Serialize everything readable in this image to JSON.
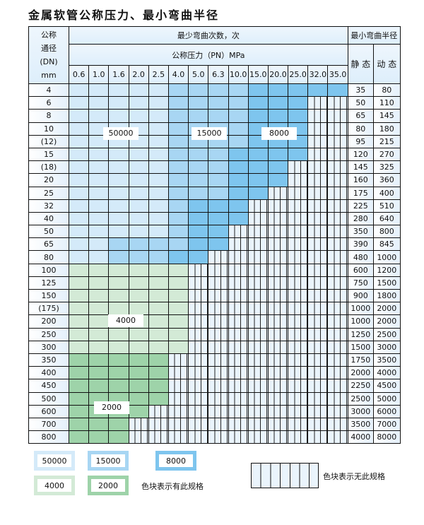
{
  "title": "金属软管公称压力、最小弯曲半径",
  "header": {
    "dn_label": [
      "公称",
      "通径",
      "(DN)",
      "mm"
    ],
    "bend_count_label": "最少弯曲次数，次",
    "pressure_label": "公称压力（PN）MPa",
    "radius_label": "最小弯曲半径",
    "static_label": "静 态",
    "dynamic_label": "动 态",
    "pressures": [
      "0.6",
      "1.0",
      "1.6",
      "2.0",
      "2.5",
      "4.0",
      "5.0",
      "6.3",
      "10.0",
      "15.0",
      "20.0",
      "25.0",
      "32.0",
      "35.0"
    ]
  },
  "tier_colors": {
    "50000": "#d4eaf9",
    "15000": "#a8d6f3",
    "8000": "#7ec5ee",
    "4000": "#d3ead6",
    "2000": "#9ed3a9"
  },
  "rows": [
    {
      "dn": "4",
      "static": "35",
      "dynamic": "80",
      "tiers": [
        [
          "50000",
          5
        ],
        [
          "15000",
          4
        ],
        [
          "8000",
          5
        ]
      ]
    },
    {
      "dn": "6",
      "static": "50",
      "dynamic": "110",
      "tiers": [
        [
          "50000",
          5
        ],
        [
          "15000",
          4
        ],
        [
          "8000",
          3
        ]
      ]
    },
    {
      "dn": "8",
      "static": "65",
      "dynamic": "145",
      "tiers": [
        [
          "50000",
          5
        ],
        [
          "15000",
          4
        ],
        [
          "8000",
          3
        ]
      ]
    },
    {
      "dn": "10",
      "static": "80",
      "dynamic": "180",
      "tiers": [
        [
          "50000",
          5
        ],
        [
          "15000",
          4
        ],
        [
          "8000",
          3
        ]
      ]
    },
    {
      "dn": "(12)",
      "static": "95",
      "dynamic": "215",
      "tiers": [
        [
          "50000",
          5
        ],
        [
          "15000",
          4
        ],
        [
          "8000",
          3
        ]
      ]
    },
    {
      "dn": "15",
      "static": "120",
      "dynamic": "270",
      "tiers": [
        [
          "50000",
          5
        ],
        [
          "15000",
          3
        ],
        [
          "8000",
          4
        ]
      ]
    },
    {
      "dn": "(18)",
      "static": "145",
      "dynamic": "325",
      "tiers": [
        [
          "50000",
          5
        ],
        [
          "15000",
          3
        ],
        [
          "8000",
          3
        ]
      ]
    },
    {
      "dn": "20",
      "static": "160",
      "dynamic": "360",
      "tiers": [
        [
          "50000",
          5
        ],
        [
          "15000",
          3
        ],
        [
          "8000",
          3
        ]
      ]
    },
    {
      "dn": "25",
      "static": "175",
      "dynamic": "400",
      "tiers": [
        [
          "50000",
          5
        ],
        [
          "15000",
          3
        ],
        [
          "8000",
          2
        ]
      ]
    },
    {
      "dn": "32",
      "static": "225",
      "dynamic": "510",
      "tiers": [
        [
          "50000",
          5
        ],
        [
          "15000",
          1
        ],
        [
          "8000",
          3
        ]
      ]
    },
    {
      "dn": "40",
      "static": "280",
      "dynamic": "640",
      "tiers": [
        [
          "50000",
          5
        ],
        [
          "15000",
          1
        ],
        [
          "8000",
          3
        ]
      ]
    },
    {
      "dn": "50",
      "static": "350",
      "dynamic": "800",
      "tiers": [
        [
          "50000",
          5
        ],
        [
          "15000",
          1
        ],
        [
          "8000",
          2
        ]
      ]
    },
    {
      "dn": "65",
      "static": "390",
      "dynamic": "845",
      "tiers": [
        [
          "50000",
          2
        ],
        [
          "15000",
          4
        ],
        [
          "8000",
          2
        ]
      ]
    },
    {
      "dn": "80",
      "static": "480",
      "dynamic": "1000",
      "tiers": [
        [
          "50000",
          2
        ],
        [
          "15000",
          3
        ],
        [
          "8000",
          2
        ]
      ]
    },
    {
      "dn": "100",
      "static": "600",
      "dynamic": "1200",
      "tiers": [
        [
          "4000",
          6
        ]
      ]
    },
    {
      "dn": "125",
      "static": "750",
      "dynamic": "1500",
      "tiers": [
        [
          "4000",
          6
        ]
      ]
    },
    {
      "dn": "150",
      "static": "900",
      "dynamic": "1800",
      "tiers": [
        [
          "4000",
          6
        ]
      ]
    },
    {
      "dn": "(175)",
      "static": "1000",
      "dynamic": "2000",
      "tiers": [
        [
          "4000",
          6
        ]
      ]
    },
    {
      "dn": "200",
      "static": "1000",
      "dynamic": "2000",
      "tiers": [
        [
          "4000",
          6
        ]
      ]
    },
    {
      "dn": "250",
      "static": "1250",
      "dynamic": "2500",
      "tiers": [
        [
          "4000",
          6
        ]
      ]
    },
    {
      "dn": "300",
      "static": "1500",
      "dynamic": "3000",
      "tiers": [
        [
          "4000",
          6
        ]
      ]
    },
    {
      "dn": "350",
      "static": "1750",
      "dynamic": "3500",
      "tiers": [
        [
          "2000",
          5
        ]
      ]
    },
    {
      "dn": "400",
      "static": "2000",
      "dynamic": "4000",
      "tiers": [
        [
          "2000",
          5
        ]
      ]
    },
    {
      "dn": "450",
      "static": "2250",
      "dynamic": "4500",
      "tiers": [
        [
          "2000",
          5
        ]
      ]
    },
    {
      "dn": "500",
      "static": "2500",
      "dynamic": "5000",
      "tiers": [
        [
          "2000",
          5
        ]
      ]
    },
    {
      "dn": "600",
      "static": "3000",
      "dynamic": "6000",
      "tiers": [
        [
          "2000",
          4
        ]
      ]
    },
    {
      "dn": "700",
      "static": "3500",
      "dynamic": "7000",
      "tiers": [
        [
          "2000",
          3
        ]
      ]
    },
    {
      "dn": "800",
      "static": "4000",
      "dynamic": "8000",
      "tiers": [
        [
          "2000",
          3
        ]
      ]
    }
  ],
  "region_labels": {
    "r50000": "50000",
    "r15000": "15000",
    "r8000": "8000",
    "r4000": "4000",
    "r2000": "2000"
  },
  "legend": {
    "items": [
      "50000",
      "15000",
      "8000",
      "4000",
      "2000"
    ],
    "has_spec_text": "色块表示有此规格",
    "no_spec_text": "色块表示无此规格"
  }
}
